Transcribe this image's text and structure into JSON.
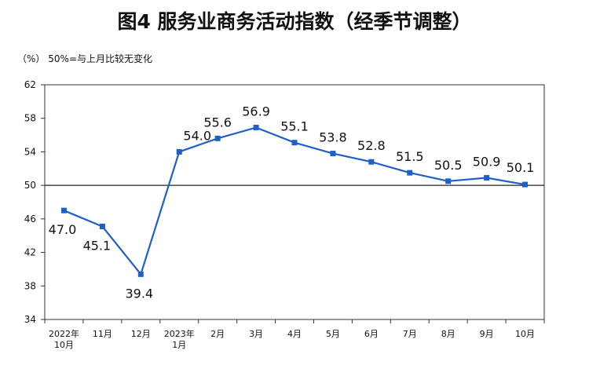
{
  "chart_data": {
    "type": "line",
    "title": "图4  服务业商务活动指数（经季节调整）",
    "ylabel": "（%）  50%=与上月比较无变化",
    "categories": [
      [
        "2022年",
        "10月"
      ],
      [
        "11月"
      ],
      [
        "12月"
      ],
      [
        "2023年",
        "1月"
      ],
      [
        "2月"
      ],
      [
        "3月"
      ],
      [
        "4月"
      ],
      [
        "5月"
      ],
      [
        "6月"
      ],
      [
        "7月"
      ],
      [
        "8月"
      ],
      [
        "9月"
      ],
      [
        "10月"
      ]
    ],
    "series": [
      {
        "values": [
          47.0,
          45.1,
          39.4,
          54.0,
          55.6,
          56.9,
          55.1,
          53.8,
          52.8,
          51.5,
          50.5,
          50.9,
          50.1
        ]
      }
    ],
    "labels": [
      "47.0",
      "45.1",
      "39.4",
      "54.0",
      "55.6",
      "56.9",
      "55.1",
      "53.8",
      "52.8",
      "51.5",
      "50.5",
      "50.9",
      "50.1"
    ],
    "yticks": [
      "34",
      "38",
      "42",
      "46",
      "50",
      "54",
      "58",
      "62"
    ],
    "ylim": [
      34,
      62
    ],
    "reference_line": 50,
    "grid": false,
    "color": "#1f5fc8"
  }
}
